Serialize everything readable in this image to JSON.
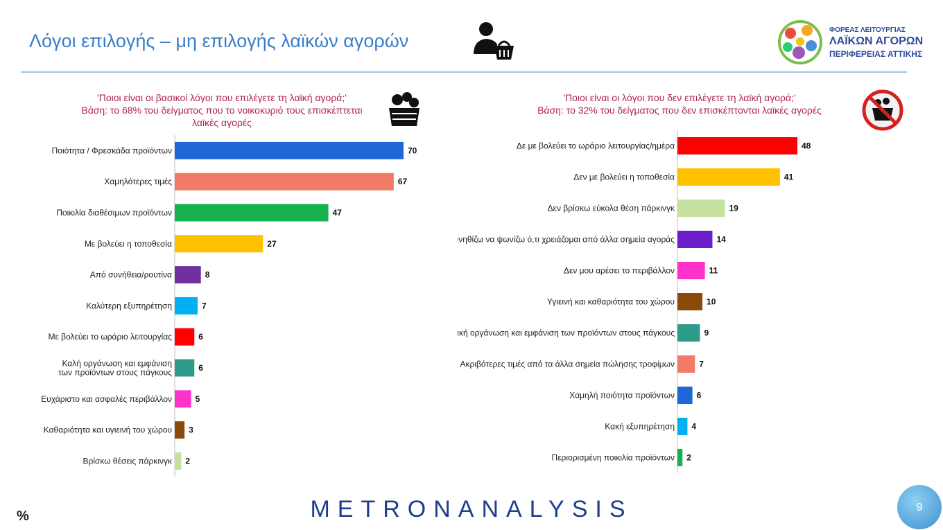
{
  "header": {
    "title": "Λόγοι επιλογής – μη επιλογής λαϊκών αγορών",
    "logo": {
      "line1": "ΦΟΡΕΑΣ ΛΕΙΤΟΥΡΓΙΑΣ",
      "line2": "ΛΑΪΚΩΝ ΑΓΟΡΩΝ",
      "line3": "ΠΕΡΙΦΕΡΕΙΑΣ ΑΤΤΙΚΗΣ"
    },
    "icons": [
      "shopper-basket-icon",
      "logo-emblem"
    ]
  },
  "colors": {
    "title": "#3a7ec8",
    "question": "#b0244b",
    "brand": "#1d3d8f"
  },
  "chart_data": [
    {
      "type": "bar",
      "orientation": "horizontal",
      "question": "'Ποιοι είναι οι βασικοί λόγοι που επιλέγετε τη λαϊκή αγορά;'",
      "base": "Βάση: το 68% του δείγματος που το νοικοκυριό τους επισκέπτεται λαϊκές αγορές",
      "icon": "vegetable-basket-icon",
      "categories": [
        "Ποιότητα / Φρεσκάδα προϊόντων",
        "Χαμηλότερες τιμές",
        "Ποικιλία διαθέσιμων προϊόντων",
        "Με βολεύει η τοποθεσία",
        "Από συνήθεια/ρουτίνα",
        "Καλύτερη εξυπηρέτηση",
        "Με βολεύει το ωράριο λειτουργίας",
        "Καλή οργάνωση και εμφάνιση των προϊόντων στους πάγκους",
        "Ευχάριστο και ασφαλές περιβάλλον",
        "Καθαριότητα και υγιεινή του χώρου",
        "Βρίσκω θέσεις πάρκινγκ"
      ],
      "values": [
        70,
        67,
        47,
        27,
        8,
        7,
        6,
        6,
        5,
        3,
        2
      ],
      "colors": [
        "#1f66d6",
        "#f07b66",
        "#16b04f",
        "#ffc000",
        "#7030a0",
        "#00b0f0",
        "#ff0000",
        "#2e9a8a",
        "#ff33cc",
        "#8b4a0c",
        "#c5e0a0"
      ],
      "xlim": [
        0,
        70
      ]
    },
    {
      "type": "bar",
      "orientation": "horizontal",
      "question": "'Ποιοι είναι οι λόγοι που δεν επιλέγετε τη λαϊκή αγορά;'",
      "base": "Βάση: το 32% του δείγματος που δεν επισκέπτονται λαϊκές αγορές",
      "icon": "no-basket-icon",
      "categories": [
        "Δε με βολεύει το ωράριο λειτουργίας/ημέρα",
        "Δεν με βολεύει η τοποθεσία",
        "Δεν βρίσκω εύκολα θέση πάρκινγκ",
        "Συνηθίζω να ψωνίζω ό,τι χρειάζομαι από άλλα σημεία αγοράς",
        "Δεν μου αρέσει το περιβάλλον",
        "Υγιεινή και καθαριότητα του χώρου",
        "Κακή οργάνωση και εμφάνιση των προϊόντων στους πάγκους",
        "Ακριβότερες τιμές από τα άλλα σημεία πώλησης τροφίμων",
        "Χαμηλή ποιότητα προϊόντων",
        "Κακή εξυπηρέτηση",
        "Περιορισμένη ποικιλία προϊόντων"
      ],
      "values": [
        48,
        41,
        19,
        14,
        11,
        10,
        9,
        7,
        6,
        4,
        2
      ],
      "colors": [
        "#ff0000",
        "#ffc000",
        "#c5e0a0",
        "#6a1fc8",
        "#ff33cc",
        "#8b4a0c",
        "#2e9a8a",
        "#f07b66",
        "#1f66d6",
        "#00b0f0",
        "#16b04f"
      ],
      "xlim": [
        0,
        48
      ]
    }
  ],
  "footer": {
    "brand": "METRONANALYSIS",
    "unit": "%",
    "page_number": "9"
  }
}
